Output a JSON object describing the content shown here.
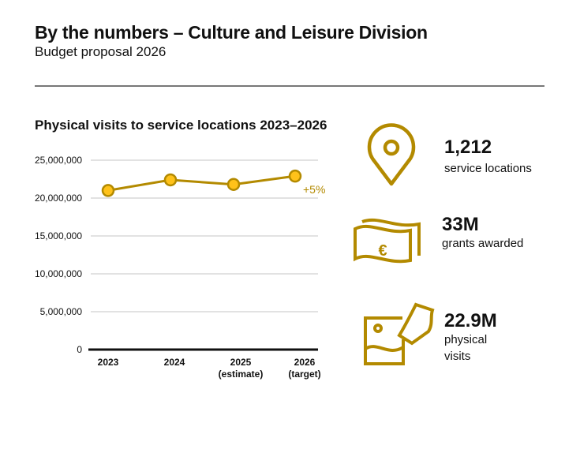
{
  "header": {
    "title": "By the numbers – Culture and Leisure Division",
    "subtitle": "Budget proposal 2026"
  },
  "chart_data": {
    "type": "line",
    "title": "Physical visits to service locations 2023–2026",
    "categories": [
      "2023",
      "2024",
      "2025",
      "2026"
    ],
    "category_sublabels": [
      "",
      "",
      "(estimate)",
      "(target)"
    ],
    "values": [
      21000000,
      22400000,
      21800000,
      22900000
    ],
    "ylim": [
      0,
      25000000
    ],
    "yticks": [
      0,
      5000000,
      10000000,
      15000000,
      20000000,
      25000000
    ],
    "ytick_labels": [
      "0",
      "5,000,000",
      "10,000,000",
      "15,000,000",
      "20,000,000",
      "25,000,000"
    ],
    "annotation": "+5%",
    "grid": true,
    "colors": {
      "line": "#b38a00",
      "marker_fill": "#ffc21a",
      "grid": "#d9d9d9",
      "axis": "#111111"
    }
  },
  "stats": [
    {
      "icon": "map-pin-icon",
      "value": "1,212",
      "label": "service locations"
    },
    {
      "icon": "euro-banknote-icon",
      "value": "33M",
      "label": "grants awarded"
    },
    {
      "icon": "picture-ticket-icon",
      "value": "22.9M",
      "label_lines": [
        "physical",
        "visits"
      ]
    }
  ],
  "accent_color": "#b38a00"
}
